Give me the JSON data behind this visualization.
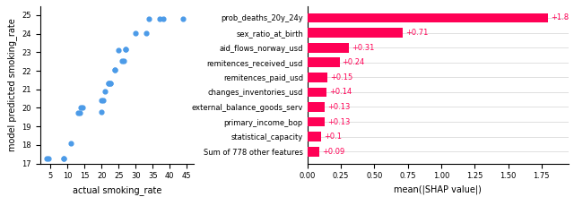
{
  "scatter": {
    "x": [
      4,
      4.5,
      9,
      9,
      11,
      13,
      13.5,
      14,
      14.5,
      20,
      20,
      20.5,
      21,
      22,
      22,
      22.5,
      22.5,
      24,
      24,
      25,
      26,
      26.5,
      27,
      27,
      30,
      33,
      34,
      37,
      38,
      44
    ],
    "y": [
      17.25,
      17.25,
      17.25,
      17.25,
      18.1,
      19.75,
      19.75,
      20.0,
      20.0,
      19.8,
      20.4,
      20.4,
      20.9,
      21.35,
      21.35,
      21.35,
      21.35,
      22.05,
      22.05,
      23.1,
      22.55,
      22.55,
      23.15,
      23.15,
      24.05,
      24.05,
      24.8,
      24.8,
      24.8,
      24.8
    ],
    "color": "#4c9be8",
    "xlabel": "actual smoking_rate",
    "ylabel": "model predicted smoking_rate",
    "xlim": [
      2,
      47
    ],
    "ylim": [
      17,
      25.5
    ],
    "yticks": [
      17,
      18,
      19,
      20,
      21,
      22,
      23,
      24,
      25
    ],
    "xticks": [
      5,
      10,
      15,
      20,
      25,
      30,
      35,
      40,
      45
    ]
  },
  "bar": {
    "features": [
      "prob_deaths_20y_24y",
      "sex_ratio_at_birth",
      "aid_flows_norway_usd",
      "remitences_received_usd",
      "remitences_paid_usd",
      "changes_inventories_usd",
      "external_balance_goods_serv",
      "primary_income_bop",
      "statistical_capacity",
      "Sum of 778 other features"
    ],
    "values": [
      1.8,
      0.71,
      0.31,
      0.24,
      0.15,
      0.14,
      0.13,
      0.13,
      0.1,
      0.09
    ],
    "labels": [
      "+1.8",
      "+0.71",
      "+0.31",
      "+0.24",
      "+0.15",
      "+0.14",
      "+0.13",
      "+0.13",
      "+0.1",
      "+0.09"
    ],
    "bar_color": "#ff0055",
    "label_color": "#ff0055",
    "xlabel": "mean(|SHAP value|)",
    "xlim": [
      0,
      1.95
    ],
    "xticks": [
      0.0,
      0.25,
      0.5,
      0.75,
      1.0,
      1.25,
      1.5,
      1.75
    ]
  }
}
